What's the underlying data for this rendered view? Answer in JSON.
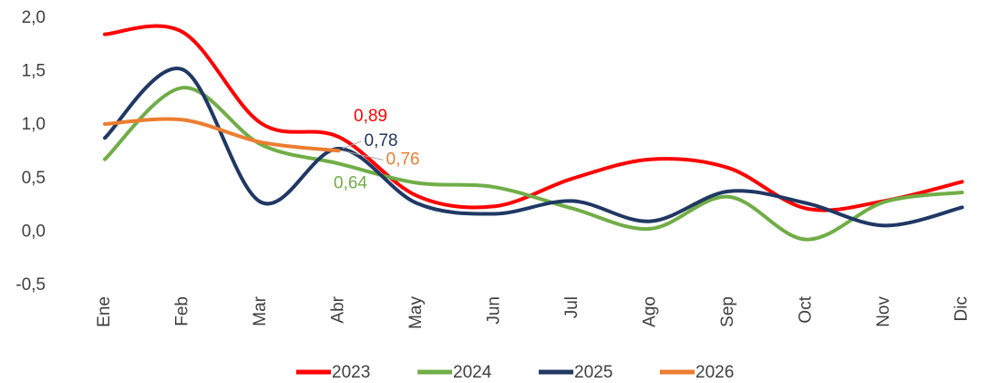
{
  "chart_data": {
    "type": "line",
    "categories": [
      "Ene",
      "Feb",
      "Mar",
      "Abr",
      "May",
      "Jun",
      "Jul",
      "Ago",
      "Sep",
      "Oct",
      "Nov",
      "Dic"
    ],
    "series": [
      {
        "name": "2023",
        "color": "#ff0000",
        "values": [
          1.85,
          1.87,
          1.02,
          0.89,
          0.34,
          0.24,
          0.5,
          0.68,
          0.6,
          0.22,
          0.29,
          0.47
        ],
        "value_labels": [
          null,
          null,
          null,
          "0,89",
          null,
          null,
          null,
          null,
          null,
          null,
          null,
          null
        ]
      },
      {
        "name": "2024",
        "color": "#70ad47",
        "values": [
          0.68,
          1.35,
          0.82,
          0.64,
          0.46,
          0.42,
          0.22,
          0.03,
          0.33,
          -0.07,
          0.28,
          0.37
        ],
        "value_labels": [
          null,
          null,
          null,
          "0,64",
          null,
          null,
          null,
          null,
          null,
          null,
          null,
          null
        ]
      },
      {
        "name": "2025",
        "color": "#203864",
        "values": [
          0.88,
          1.52,
          0.28,
          0.78,
          0.27,
          0.17,
          0.29,
          0.1,
          0.38,
          0.27,
          0.06,
          0.23
        ],
        "value_labels": [
          null,
          null,
          null,
          "0,78",
          null,
          null,
          null,
          null,
          null,
          null,
          null,
          null
        ]
      },
      {
        "name": "2026",
        "color": "#ed7d31",
        "values": [
          1.01,
          1.05,
          0.84,
          0.76,
          null,
          null,
          null,
          null,
          null,
          null,
          null,
          null
        ],
        "value_labels": [
          null,
          null,
          null,
          "0,76",
          null,
          null,
          null,
          null,
          null,
          null,
          null,
          null
        ]
      }
    ],
    "ylim": [
      -0.5,
      2.0
    ],
    "yticks": [
      {
        "value": -0.5,
        "label": "-0,5"
      },
      {
        "value": 0,
        "label": "0,0"
      },
      {
        "value": 0.5,
        "label": "0,5"
      },
      {
        "value": 1.0,
        "label": "1,0"
      },
      {
        "value": 1.5,
        "label": "1,5"
      },
      {
        "value": 2.0,
        "label": "2,0"
      }
    ],
    "grid": false
  }
}
